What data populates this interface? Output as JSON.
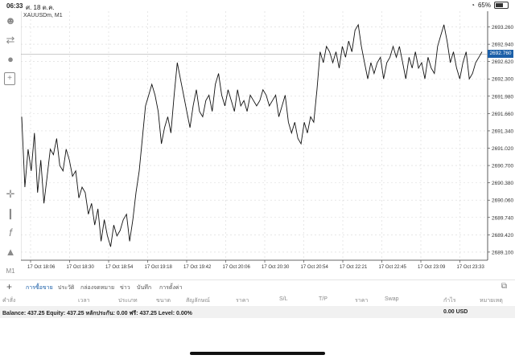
{
  "status_bar": {
    "time": "06:33",
    "date": "ศ. 18 ต.ค.",
    "battery": "65%",
    "battery_level": 0.65
  },
  "chart": {
    "symbol": "XAUUSDm, M1",
    "current_price": "2692.760"
  },
  "chart_data": {
    "type": "line",
    "ylim": [
      2688.95,
      2693.55
    ],
    "y_ticks": [
      "2693.260",
      "2692.940",
      "2692.620",
      "2692.300",
      "2691.980",
      "2691.660",
      "2691.340",
      "2691.020",
      "2690.700",
      "2690.380",
      "2690.060",
      "2689.740",
      "2689.420",
      "2689.100"
    ],
    "x_ticks": [
      "17 Oct 18:06",
      "17 Oct 18:30",
      "17 Oct 18:54",
      "17 Oct 19:18",
      "17 Oct 19:42",
      "17 Oct 20:06",
      "17 Oct 20:30",
      "17 Oct 20:54",
      "17 Oct 22:21",
      "17 Oct 22:45",
      "17 Oct 23:09",
      "17 Oct 23:33"
    ],
    "values": [
      2691.6,
      2690.3,
      2691.0,
      2690.6,
      2691.3,
      2690.2,
      2690.8,
      2690.0,
      2690.5,
      2691.0,
      2690.9,
      2691.2,
      2690.7,
      2690.6,
      2691.0,
      2690.8,
      2690.5,
      2690.6,
      2690.1,
      2690.3,
      2690.2,
      2689.8,
      2690.0,
      2689.6,
      2689.9,
      2689.3,
      2689.7,
      2689.4,
      2689.2,
      2689.6,
      2689.4,
      2689.5,
      2689.7,
      2689.8,
      2689.3,
      2689.7,
      2690.2,
      2690.6,
      2691.2,
      2691.8,
      2692.0,
      2692.2,
      2692.0,
      2691.7,
      2691.1,
      2691.4,
      2691.6,
      2691.3,
      2692.0,
      2692.6,
      2692.3,
      2692.0,
      2691.7,
      2691.4,
      2691.8,
      2692.1,
      2691.7,
      2691.6,
      2691.9,
      2692.0,
      2691.7,
      2692.2,
      2692.4,
      2692.0,
      2691.8,
      2692.1,
      2691.9,
      2691.7,
      2692.1,
      2691.8,
      2691.9,
      2691.7,
      2692.0,
      2691.9,
      2691.8,
      2691.9,
      2692.1,
      2692.0,
      2691.8,
      2691.9,
      2692.0,
      2691.6,
      2691.8,
      2692.0,
      2691.5,
      2691.3,
      2691.5,
      2691.2,
      2691.1,
      2691.5,
      2691.3,
      2691.6,
      2691.5,
      2692.1,
      2692.8,
      2692.6,
      2692.9,
      2692.8,
      2692.6,
      2692.8,
      2692.5,
      2692.9,
      2692.7,
      2693.0,
      2692.8,
      2693.2,
      2693.3,
      2692.9,
      2692.6,
      2692.3,
      2692.6,
      2692.4,
      2692.6,
      2692.7,
      2692.3,
      2692.6,
      2692.7,
      2692.9,
      2692.7,
      2692.9,
      2692.6,
      2692.3,
      2692.7,
      2692.5,
      2692.8,
      2692.5,
      2692.6,
      2692.3,
      2692.7,
      2692.5,
      2692.4,
      2692.9,
      2693.1,
      2693.3,
      2693.0,
      2692.6,
      2692.8,
      2692.5,
      2692.3,
      2692.6,
      2692.8,
      2692.3,
      2692.4,
      2692.6,
      2692.7,
      2692.8
    ]
  },
  "tabs": [
    {
      "label": "การซื้อขาย",
      "active": true
    },
    {
      "label": "ประวัติ",
      "active": false
    },
    {
      "label": "กล่องจดหมาย",
      "active": false
    },
    {
      "label": "ข่าว",
      "active": false
    },
    {
      "label": "บันทึก",
      "active": false
    },
    {
      "label": "การตั้งค่า",
      "active": false
    }
  ],
  "columns": [
    "คำสั่ง",
    "เวลา",
    "ประเภท",
    "ขนาด",
    "สัญลักษณ์",
    "ราคา",
    "S/L",
    "T/P",
    "ราคา",
    "Swap",
    "กำไร",
    "หมายเหตุ"
  ],
  "balance_line": "Balance: 437.25 Equity: 437.25 หลักประกัน: 0.00 ฟรี: 437.25 Level: 0.00%",
  "total": "0.00  USD",
  "sidebar_icons": [
    "user-icon",
    "share-icon",
    "chat-icon",
    "new-order-icon",
    "crosshair-icon",
    "candles-icon",
    "indicator-icon",
    "objects-icon",
    "timeframe-icon"
  ],
  "timeframe": "M1"
}
